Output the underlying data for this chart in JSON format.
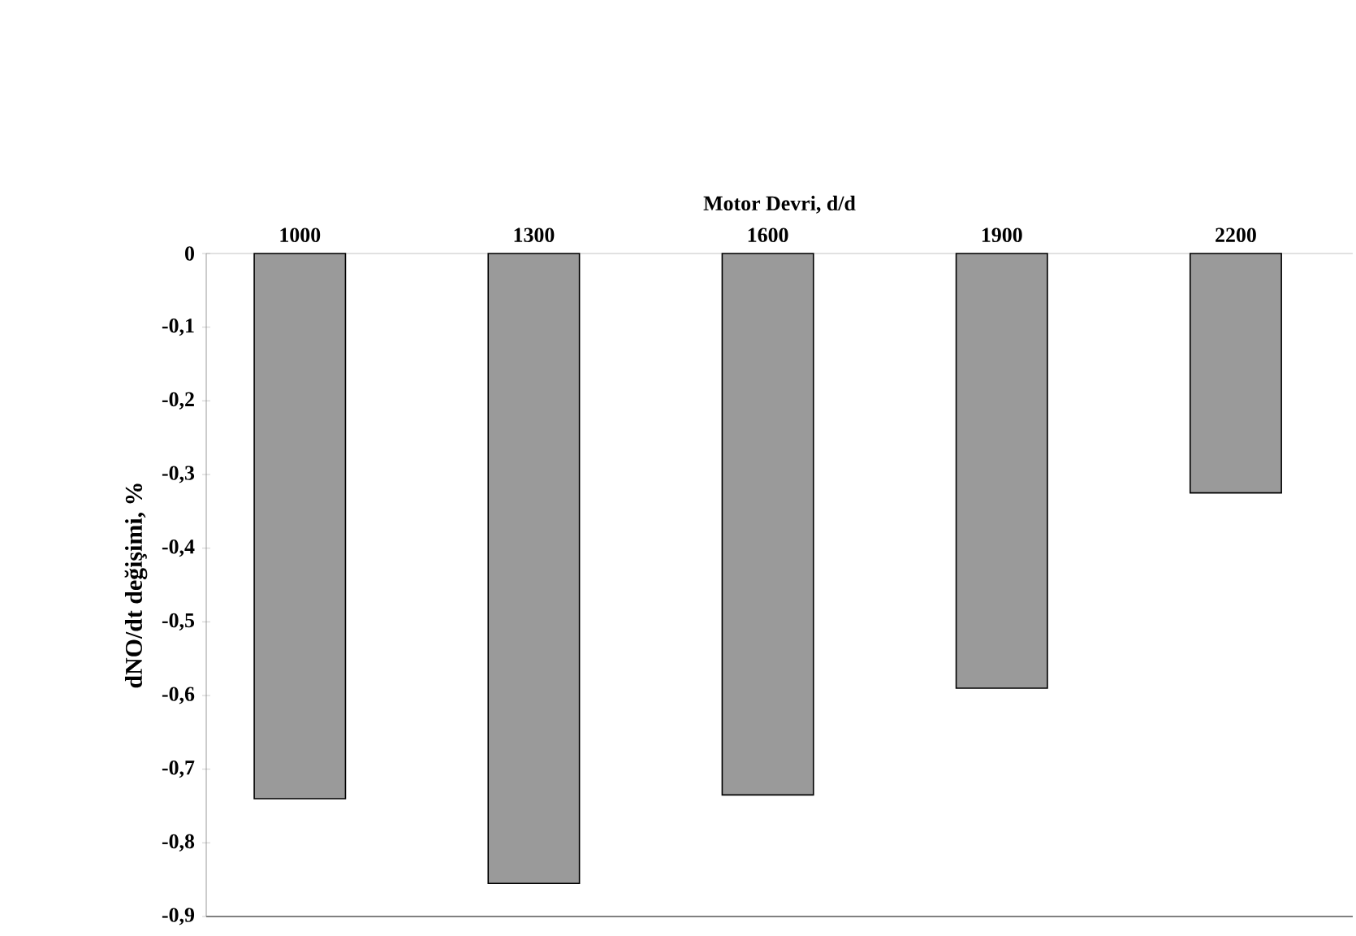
{
  "chart_data": {
    "type": "bar",
    "xlabel": "Motor Devri, d/d",
    "ylabel": "dNO/dt değişimi, %",
    "categories": [
      "1000",
      "1300",
      "1600",
      "1900",
      "2200"
    ],
    "values": [
      -0.74,
      -0.855,
      -0.735,
      -0.59,
      -0.325
    ],
    "color": "#9a9a9a",
    "ylim": [
      -0.9,
      0
    ],
    "yticks": [
      0,
      {
        "value": -0.1,
        "label": "-0,1"
      },
      {
        "value": -0.2,
        "label": "-0,2"
      },
      {
        "value": -0.3,
        "label": "-0,3"
      },
      {
        "value": -0.4,
        "label": "-0,4"
      },
      {
        "value": -0.5,
        "label": "-0,5"
      },
      {
        "value": -0.6,
        "label": "-0,6"
      },
      {
        "value": -0.7,
        "label": "-0,7"
      },
      {
        "value": -0.8,
        "label": "-0,8"
      },
      {
        "value": -0.9,
        "label": "-0,9"
      }
    ],
    "grid": false
  }
}
